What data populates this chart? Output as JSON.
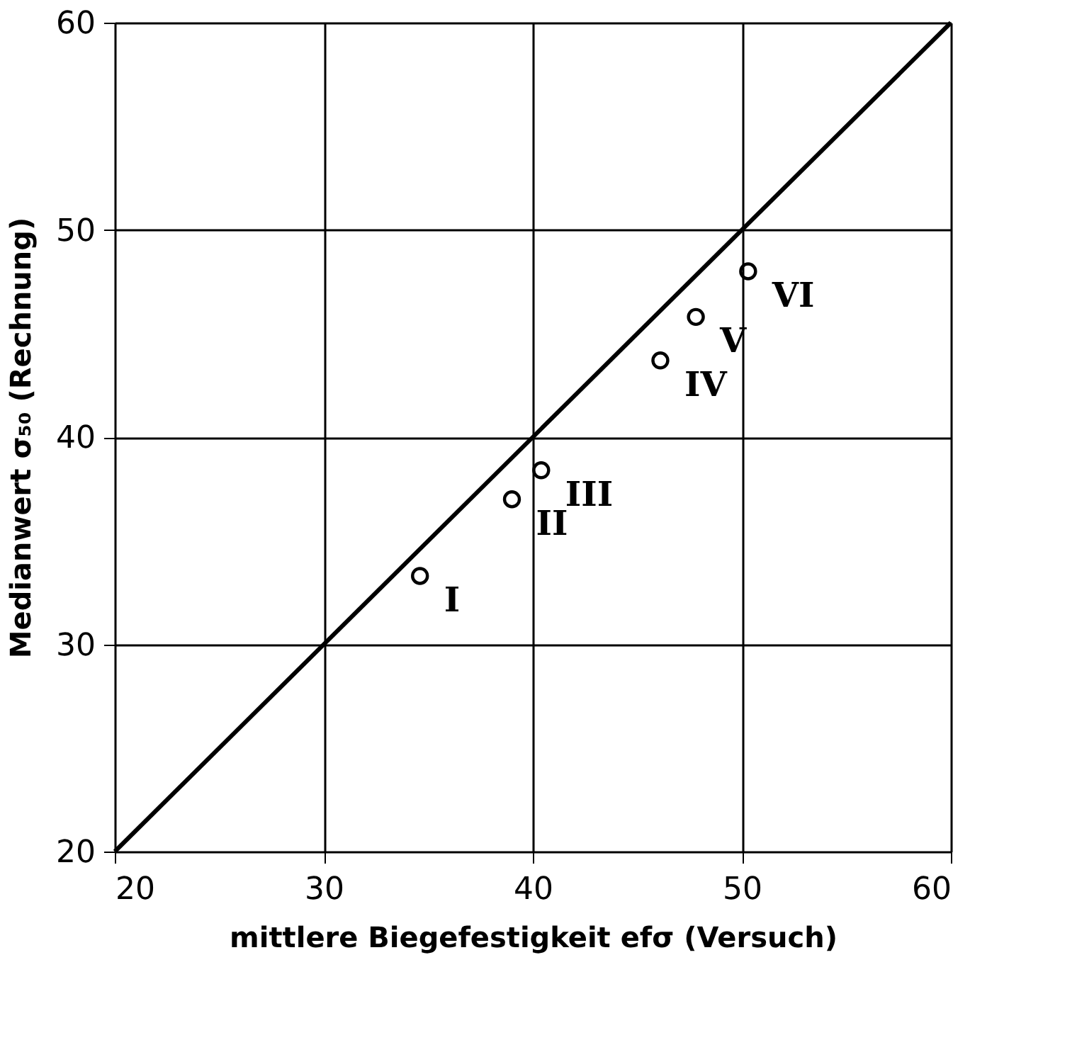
{
  "chart_data": {
    "type": "scatter",
    "xlabel": "mittlere Biegefestigkeit efσ (Versuch)",
    "ylabel": "Medianwert σ₅₀ (Rechnung)",
    "xlim": [
      20,
      60
    ],
    "ylim": [
      20,
      60
    ],
    "xticks": [
      20,
      30,
      40,
      50,
      60
    ],
    "yticks": [
      20,
      30,
      40,
      50,
      60
    ],
    "grid": true,
    "marker": "circle",
    "series": [
      {
        "color": "#000000",
        "x": [
          34.6,
          39.0,
          40.4,
          46.1,
          47.8,
          50.3
        ],
        "values": [
          33.3,
          37.0,
          38.4,
          43.7,
          45.8,
          48.0
        ]
      },
      {
        "type": "line",
        "color": "#000000",
        "line_style": "solid",
        "marker": "none",
        "x": [
          20,
          60
        ],
        "values": [
          20,
          60
        ]
      }
    ],
    "annotations": [
      {
        "text": "I",
        "x": 34.6,
        "y": 33.3
      },
      {
        "text": "II",
        "x": 39.0,
        "y": 37.0
      },
      {
        "text": "III",
        "x": 40.4,
        "y": 38.4
      },
      {
        "text": "IV",
        "x": 46.1,
        "y": 43.7
      },
      {
        "text": "V",
        "x": 47.8,
        "y": 45.8
      },
      {
        "text": "VI",
        "x": 50.3,
        "y": 48.0
      }
    ]
  }
}
